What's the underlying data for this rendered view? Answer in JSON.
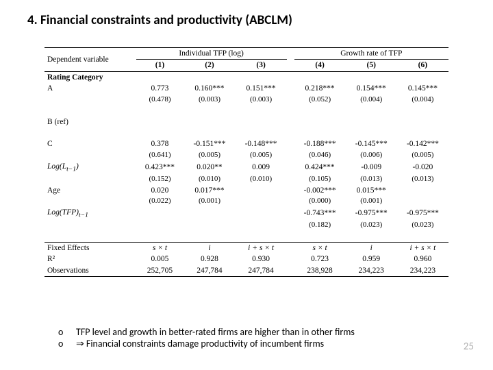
{
  "title": "4. Financial constraints and productivity (ABCLM)",
  "head": {
    "depvar": "Dependent variable",
    "g1": "Individual TFP (log)",
    "g2": "Growth rate of TFP",
    "c1": "(1)",
    "c2": "(2)",
    "c3": "(3)",
    "c4": "(4)",
    "c5": "(5)",
    "c6": "(6)"
  },
  "rc": "Rating Category",
  "rows": {
    "A": {
      "lbl": "A",
      "v": [
        "0.773",
        "0.160***",
        "0.151***",
        "0.218***",
        "0.154***",
        "0.145***"
      ],
      "se": [
        "(0.478)",
        "(0.003)",
        "(0.003)",
        "(0.052)",
        "(0.004)",
        "(0.004)"
      ]
    },
    "B": {
      "lbl": "B (ref)"
    },
    "C": {
      "lbl": "C",
      "v": [
        "0.378",
        "-0.151***",
        "-0.148***",
        "-0.188***",
        "-0.145***",
        "-0.142***"
      ],
      "se": [
        "(0.641)",
        "(0.005)",
        "(0.005)",
        "(0.046)",
        "(0.006)",
        "(0.005)"
      ]
    },
    "L": {
      "lbl": "Log(L",
      "sub": "t−1",
      "tail": ")",
      "v": [
        "0.423***",
        "0.020**",
        "0.009",
        "0.424***",
        "-0.009",
        "-0.020"
      ],
      "se": [
        "(0.152)",
        "(0.010)",
        "(0.010)",
        "(0.105)",
        "(0.013)",
        "(0.013)"
      ]
    },
    "Age": {
      "lbl": "Age",
      "v": [
        "0.020",
        "0.017***",
        "",
        "-0.002***",
        "0.015***",
        ""
      ],
      "se": [
        "(0.022)",
        "(0.001)",
        "",
        "(0.000)",
        "(0.001)",
        ""
      ]
    },
    "TFP": {
      "lbl": "Log(TFP)",
      "sub": "t−1",
      "v": [
        "",
        "",
        "",
        "-0.743***",
        "-0.975***",
        "-0.975***"
      ],
      "se": [
        "",
        "",
        "",
        "(0.182)",
        "(0.023)",
        "(0.023)"
      ]
    }
  },
  "foot": {
    "fe": {
      "lbl": "Fixed Effects",
      "v": [
        "s × t",
        "i",
        "i + s × t",
        "s × t",
        "i",
        "i + s × t"
      ]
    },
    "r2": {
      "lbl": "R²",
      "v": [
        "0.005",
        "0.928",
        "0.930",
        "0.723",
        "0.959",
        "0.960"
      ]
    },
    "obs": {
      "lbl": "Observations",
      "v": [
        "252,705",
        "247,784",
        "247,784",
        "238,928",
        "234,223",
        "234,223"
      ]
    }
  },
  "notes": {
    "b1": "o",
    "n1": "TFP level and growth in better-rated firms are higher than in other firms",
    "n2": "⇒ Financial constraints damage productivity of incumbent firms"
  },
  "slidenum": "25",
  "colors": {
    "bg": "#ffffff",
    "text": "#000000",
    "pagenum": "#b0b0b0",
    "rule": "#000000"
  }
}
